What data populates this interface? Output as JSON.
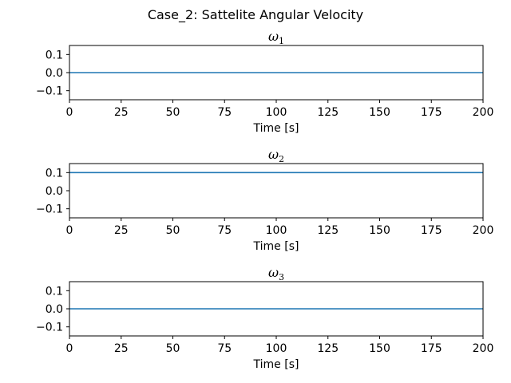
{
  "suptitle": "Case_2: Sattelite Angular Velocity",
  "chart_data": [
    {
      "type": "line",
      "title": {
        "symbol": "ω",
        "subscript": "1"
      },
      "xlabel": "Time [s]",
      "ylabel": "",
      "xlim": [
        0,
        200
      ],
      "ylim": [
        -0.15,
        0.15
      ],
      "xticks": [
        0,
        25,
        50,
        75,
        100,
        125,
        150,
        175,
        200
      ],
      "yticks": [
        -0.1,
        0.0,
        0.1
      ],
      "xtick_labels": [
        "0",
        "25",
        "50",
        "75",
        "100",
        "125",
        "150",
        "175",
        "200"
      ],
      "ytick_labels": [
        "−0.1",
        "0.0",
        "0.1"
      ],
      "grid": false,
      "series": [
        {
          "color": "#1f77b4",
          "x": [
            0,
            200
          ],
          "y": [
            0.0,
            0.0
          ]
        }
      ]
    },
    {
      "type": "line",
      "title": {
        "symbol": "ω",
        "subscript": "2"
      },
      "xlabel": "Time [s]",
      "ylabel": "",
      "xlim": [
        0,
        200
      ],
      "ylim": [
        -0.15,
        0.15
      ],
      "xticks": [
        0,
        25,
        50,
        75,
        100,
        125,
        150,
        175,
        200
      ],
      "yticks": [
        -0.1,
        0.0,
        0.1
      ],
      "xtick_labels": [
        "0",
        "25",
        "50",
        "75",
        "100",
        "125",
        "150",
        "175",
        "200"
      ],
      "ytick_labels": [
        "−0.1",
        "0.0",
        "0.1"
      ],
      "grid": false,
      "series": [
        {
          "color": "#1f77b4",
          "x": [
            0,
            200
          ],
          "y": [
            0.1,
            0.1
          ]
        }
      ]
    },
    {
      "type": "line",
      "title": {
        "symbol": "ω",
        "subscript": "3"
      },
      "xlabel": "Time [s]",
      "ylabel": "",
      "xlim": [
        0,
        200
      ],
      "ylim": [
        -0.15,
        0.15
      ],
      "xticks": [
        0,
        25,
        50,
        75,
        100,
        125,
        150,
        175,
        200
      ],
      "yticks": [
        -0.1,
        0.0,
        0.1
      ],
      "xtick_labels": [
        "0",
        "25",
        "50",
        "75",
        "100",
        "125",
        "150",
        "175",
        "200"
      ],
      "ytick_labels": [
        "−0.1",
        "0.0",
        "0.1"
      ],
      "grid": false,
      "series": [
        {
          "color": "#1f77b4",
          "x": [
            0,
            200
          ],
          "y": [
            0.0,
            0.0
          ]
        }
      ]
    }
  ]
}
